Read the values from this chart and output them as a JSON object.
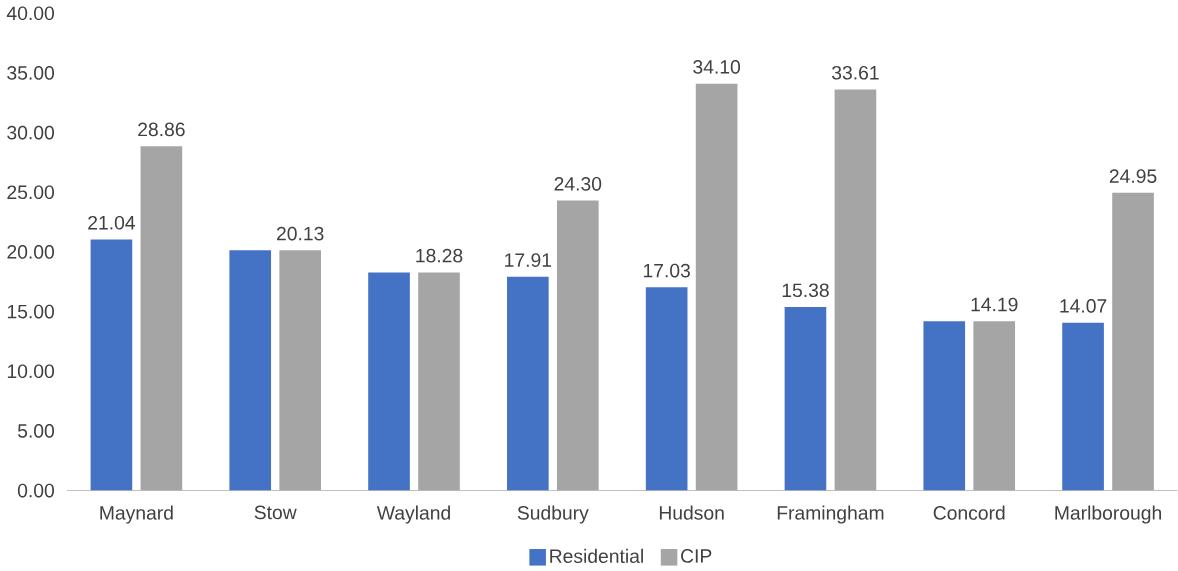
{
  "chart_data": {
    "type": "bar",
    "categories": [
      "Maynard",
      "Stow",
      "Wayland",
      "Sudbury",
      "Hudson",
      "Framingham",
      "Concord",
      "Marlborough"
    ],
    "series": [
      {
        "name": "Residential",
        "color": "#4472c4",
        "values": [
          21.04,
          20.13,
          18.28,
          17.91,
          17.03,
          15.38,
          14.19,
          14.07
        ],
        "value_labels": [
          "21.04",
          null,
          null,
          "17.91",
          "17.03",
          "15.38",
          null,
          "14.07"
        ]
      },
      {
        "name": "CIP",
        "color": "#a5a5a5",
        "values": [
          28.86,
          20.13,
          18.28,
          24.3,
          34.1,
          33.61,
          14.19,
          24.95
        ],
        "value_labels": [
          "28.86",
          "20.13",
          "18.28",
          "24.30",
          "34.10",
          "33.61",
          "14.19",
          "24.95"
        ]
      }
    ],
    "ylim": [
      0,
      40
    ],
    "yticks": [
      {
        "value": 0,
        "label": "0.00"
      },
      {
        "value": 5,
        "label": "5.00"
      },
      {
        "value": 10,
        "label": "10.00"
      },
      {
        "value": 15,
        "label": "15.00"
      },
      {
        "value": 20,
        "label": "20.00"
      },
      {
        "value": 25,
        "label": "25.00"
      },
      {
        "value": 30,
        "label": "30.00"
      },
      {
        "value": 35,
        "label": "35.00"
      },
      {
        "value": 40,
        "label": "40.00"
      }
    ],
    "grid": false,
    "legend": "bottom"
  }
}
